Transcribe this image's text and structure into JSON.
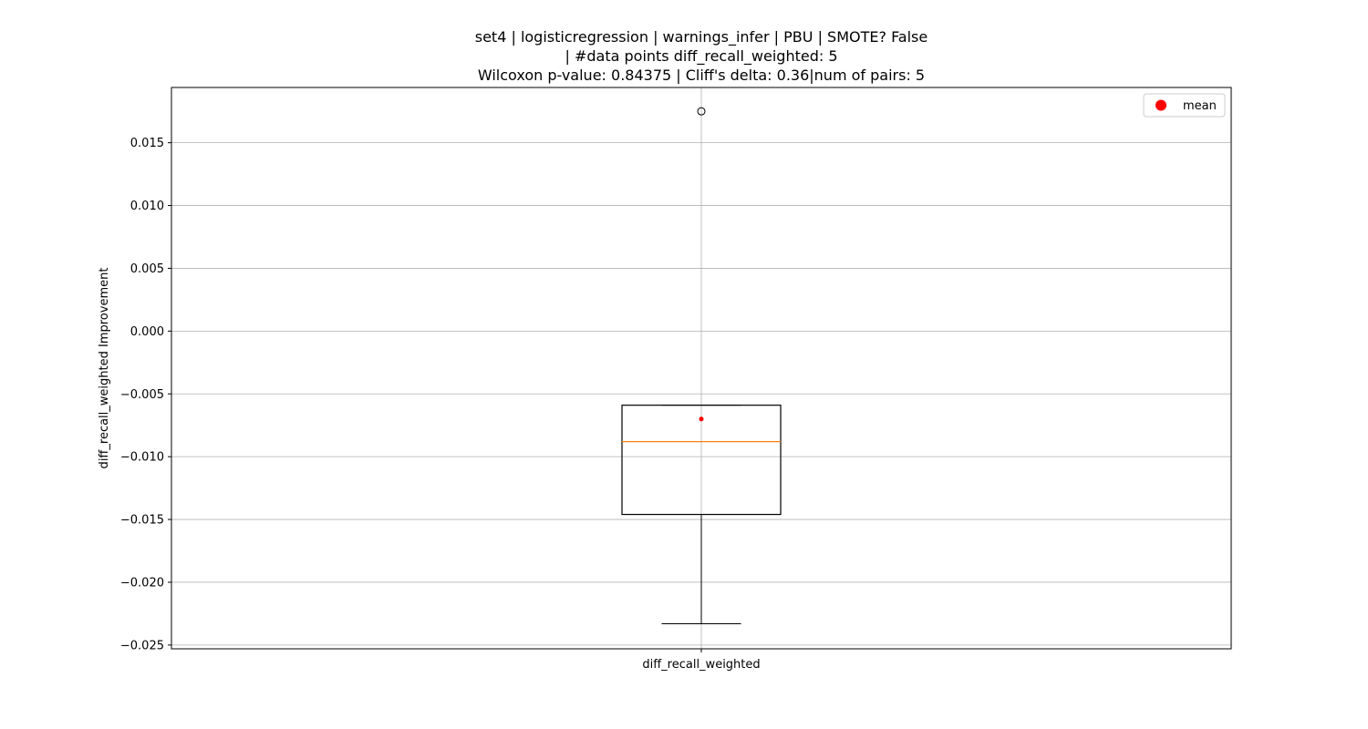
{
  "chart_data": {
    "type": "box",
    "title_lines": [
      "set4 | logisticregression | warnings_infer | PBU | SMOTE? False",
      "| #data points diff_recall_weighted: 5",
      "Wilcoxon p-value: 0.84375 | Cliff's delta: 0.36|num of pairs: 5"
    ],
    "xlabel": "",
    "ylabel": "diff_recall_weighted Improvement",
    "categories": [
      "diff_recall_weighted"
    ],
    "ylim": [
      -0.0253,
      0.0194
    ],
    "yticks": [
      0.015,
      0.01,
      0.005,
      0.0,
      -0.005,
      -0.01,
      -0.015,
      -0.02,
      -0.025
    ],
    "ytick_labels": [
      "0.015",
      "0.010",
      "0.005",
      "0.000",
      "−0.005",
      "−0.010",
      "−0.015",
      "−0.020",
      "−0.025"
    ],
    "grid": true,
    "boxes": [
      {
        "category": "diff_recall_weighted",
        "whisker_low": -0.0233,
        "q1": -0.0146,
        "median": -0.0088,
        "q3": -0.0059,
        "whisker_high": -0.0059,
        "mean": -0.007,
        "outliers": [
          0.0175
        ]
      }
    ],
    "legend": {
      "placement": "top-right",
      "entries": [
        "mean"
      ]
    },
    "colors": {
      "box": "#000000",
      "median": "#ff7f0e",
      "mean": "#ff0000",
      "grid": "#b0b0b0"
    }
  }
}
